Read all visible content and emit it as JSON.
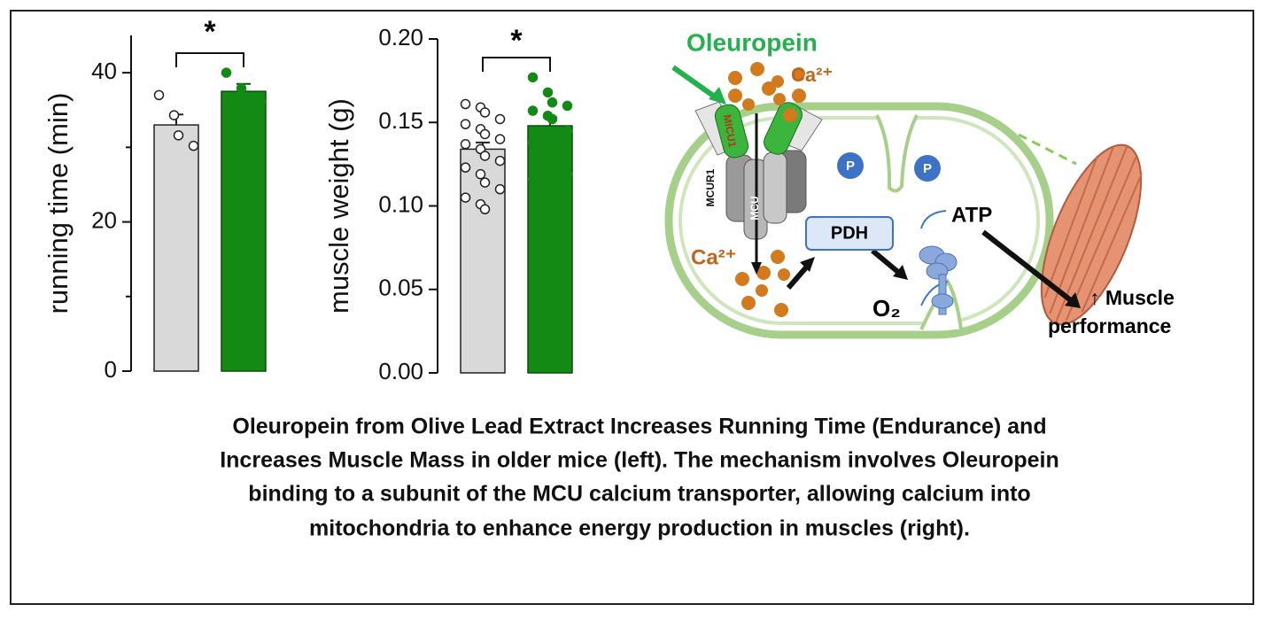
{
  "chart_data": [
    {
      "type": "bar",
      "ylabel": "running time (min)",
      "categories": [
        null,
        null
      ],
      "values": [
        33,
        37.5
      ],
      "errors": [
        1.4,
        1
      ],
      "colors": [
        "#d9d9d9",
        "#138a13"
      ],
      "points": [
        [
          37.0,
          34.3,
          31.6,
          30.2
        ],
        [
          40.0,
          37.9,
          36.1,
          36.1
        ]
      ],
      "ylim": [
        0,
        45
      ],
      "yticks": [
        0,
        20,
        40
      ],
      "yminorticks": [
        10,
        30
      ],
      "annotation": "*"
    },
    {
      "type": "bar",
      "ylabel": "muscle weight (g)",
      "categories": [
        null,
        null
      ],
      "values": [
        0.134,
        0.148
      ],
      "errors": [
        0.004,
        0.005
      ],
      "colors": [
        "#d9d9d9",
        "#138a13"
      ],
      "points": [
        [
          0.161,
          0.159,
          0.156,
          0.152,
          0.149,
          0.146,
          0.143,
          0.14,
          0.137,
          0.134,
          0.13,
          0.127,
          0.123,
          0.119,
          0.114,
          0.11,
          0.105,
          0.101,
          0.098
        ],
        [
          0.177,
          0.168,
          0.162,
          0.16,
          0.157,
          0.154,
          0.152,
          0.145,
          0.138,
          0.132,
          0.127,
          0.119,
          0.116
        ]
      ],
      "ylim": [
        0,
        0.2
      ],
      "yticks": [
        {
          "value": 0,
          "label": "0.00"
        },
        {
          "value": 0.05,
          "label": "0.05"
        },
        {
          "value": 0.1,
          "label": "0.10"
        },
        {
          "value": 0.15,
          "label": "0.15"
        },
        {
          "value": 0.2,
          "label": "0.20"
        }
      ],
      "annotation": "*"
    }
  ],
  "diagram": {
    "compound": "Oleuropein",
    "calcium": "Ca²⁺",
    "micu": "MICU1",
    "mcur": "MCUR1",
    "mcu": "MCU",
    "phosphate": "P",
    "enzyme": "PDH",
    "oxygen": "O₂",
    "energy": "ATP",
    "outcome": [
      "↑ Muscle",
      "performance"
    ]
  },
  "caption": {
    "lines": [
      "Oleuropein from Olive Lead Extract Increases Running Time (Endurance) and",
      "Increases Muscle Mass in older mice (left). The mechanism involves Oleuropein",
      "binding to a subunit of the MCU calcium transporter, allowing calcium into",
      "mitochondria to enhance energy production in muscles (right)."
    ]
  }
}
